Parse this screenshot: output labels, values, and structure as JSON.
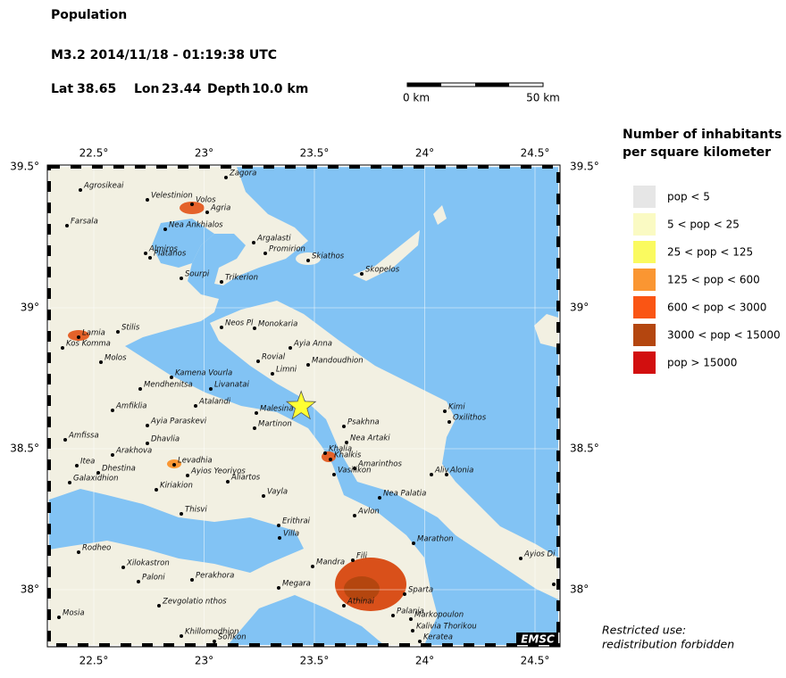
{
  "header": {
    "title": "Population",
    "event": "M3.2  2014/11/18 - 01:19:38 UTC",
    "lat_label": "Lat",
    "lat": 38.65,
    "lon_label": "Lon",
    "lon": 23.44,
    "depth_label": "Depth",
    "depth": "10.0 km"
  },
  "scale_bar": {
    "start": "0 km",
    "end": "50 km"
  },
  "map": {
    "lon_ticks": [
      {
        "value": 22.5,
        "label": "22.5°"
      },
      {
        "value": 23,
        "label": "23°"
      },
      {
        "value": 23.5,
        "label": "23.5°"
      },
      {
        "value": 24,
        "label": "24°"
      },
      {
        "value": 24.5,
        "label": "24.5°"
      }
    ],
    "lat_ticks": [
      {
        "value": 39.5,
        "label": "39.5°"
      },
      {
        "value": 39,
        "label": "39°"
      },
      {
        "value": 38.5,
        "label": "38.5°"
      },
      {
        "value": 38,
        "label": "38°"
      }
    ],
    "logo": "EMSC",
    "towns": [
      "Agrosikeai",
      "Zagora",
      "Velestinion",
      "Volos",
      "Agria",
      "Farsala",
      "Nea Ankhialos",
      "Argalasti",
      "Promirion",
      "Skiathos",
      "Almiros",
      "Platanos",
      "Skopelos",
      "Sourpi",
      "Trikerion",
      "Neos Pl",
      "Monokaria",
      "Stilis",
      "Lamia",
      "Kos Komma",
      "Molos",
      "Ayia Anna",
      "Rovial",
      "Mandoudhion",
      "Kamena Vourla",
      "Limni",
      "Livanatai",
      "Mendhenitsa",
      "Atalandi",
      "Amfiklia",
      "Malesina",
      "Kimi",
      "Oxilithos",
      "Psakhna",
      "Martinon",
      "Ayia Paraskevi",
      "Amfissa",
      "Dhavlia",
      "Nea Artaki",
      "Arakhova",
      "Khalia",
      "Khalkis",
      "Levadhia",
      "Amarinthos",
      "Itea",
      "Vasilikon",
      "Aliv",
      "Alonia",
      "Dhestina",
      "Ayios Yeoriyos",
      "Aliartos",
      "Galaxidhion",
      "Kiriakion",
      "Nea Palatia",
      "Vayla",
      "Thisvi",
      "Avlon",
      "Erithrai",
      "Villa",
      "Marathon",
      "Rodheo",
      "Xilokastron",
      "Perakhora",
      "Fili",
      "Mandra",
      "Paloni",
      "Megara",
      "Sparta",
      "Zevgolatio nthos",
      "Athinai",
      "Kato A",
      "Ayios Di",
      "Palania",
      "Markopoulon",
      "Mosia",
      "Kalivia Thorikou",
      "Keratea",
      "Khillomodhion",
      "Sofikon"
    ]
  },
  "legend": {
    "title_line1": "Number of inhabitants",
    "title_line2": "per square kilometer",
    "items": [
      {
        "label": "pop < 5",
        "color": "#e6e6e6"
      },
      {
        "label": "5 < pop < 25",
        "color": "#fafac3"
      },
      {
        "label": "25 < pop < 125",
        "color": "#fafa5f"
      },
      {
        "label": "125 < pop < 600",
        "color": "#fa9632"
      },
      {
        "label": "600 < pop < 3000",
        "color": "#fa5514"
      },
      {
        "label": "3000 < pop < 15000",
        "color": "#b4460f"
      },
      {
        "label": "pop > 15000",
        "color": "#d20f0f"
      }
    ]
  },
  "footer": {
    "line1": "Restricted use:",
    "line2": "redistribution forbidden"
  }
}
